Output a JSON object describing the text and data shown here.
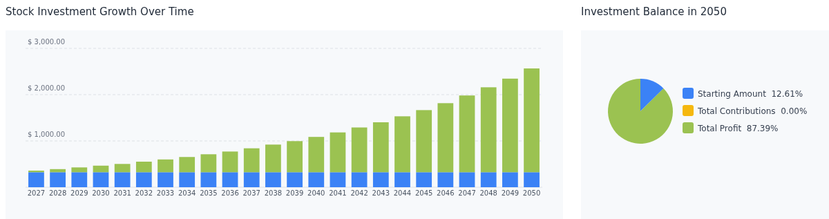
{
  "chart_data": [
    {
      "type": "bar",
      "title": "Stock Investment Growth Over Time",
      "stacked": true,
      "categories": [
        "2027",
        "2028",
        "2029",
        "2030",
        "2031",
        "2032",
        "2033",
        "2034",
        "2035",
        "2036",
        "2037",
        "2038",
        "2039",
        "2040",
        "2041",
        "2042",
        "2043",
        "2044",
        "2045",
        "2046",
        "2047",
        "2048",
        "2049",
        "2050"
      ],
      "series": [
        {
          "color": "#3b82f6",
          "values": [
            324,
            324,
            324,
            324,
            324,
            324,
            324,
            324,
            324,
            324,
            324,
            324,
            324,
            324,
            324,
            324,
            324,
            324,
            324,
            324,
            324,
            324,
            324,
            324
          ]
        },
        {
          "color": "#9bc251",
          "values": [
            35,
            67,
            104,
            142,
            179,
            228,
            276,
            329,
            388,
            447,
            517,
            597,
            672,
            763,
            860,
            967,
            1079,
            1208,
            1342,
            1492,
            1658,
            1835,
            2022,
            2242
          ]
        }
      ],
      "ylim": [
        0,
        3000
      ],
      "yticks": [
        {
          "value": 0,
          "label": null
        },
        {
          "value": 1000,
          "label": "$ 1,000.00"
        },
        {
          "value": 2000,
          "label": "$ 2,000.00"
        },
        {
          "value": 3000,
          "label": "$ 3,000.00"
        }
      ],
      "grid": "y"
    },
    {
      "type": "pie",
      "title": "Investment Balance in 2050",
      "categories": [
        "Starting Amount",
        "Total Contributions",
        "Total Profit"
      ],
      "values": [
        12.61,
        0,
        87.39
      ],
      "colors": [
        "#3b82f6",
        "#f5b80f",
        "#9bc251"
      ],
      "value_labels": [
        "12.61%",
        "0.00%",
        "87.39%"
      ],
      "legend": "right"
    }
  ]
}
